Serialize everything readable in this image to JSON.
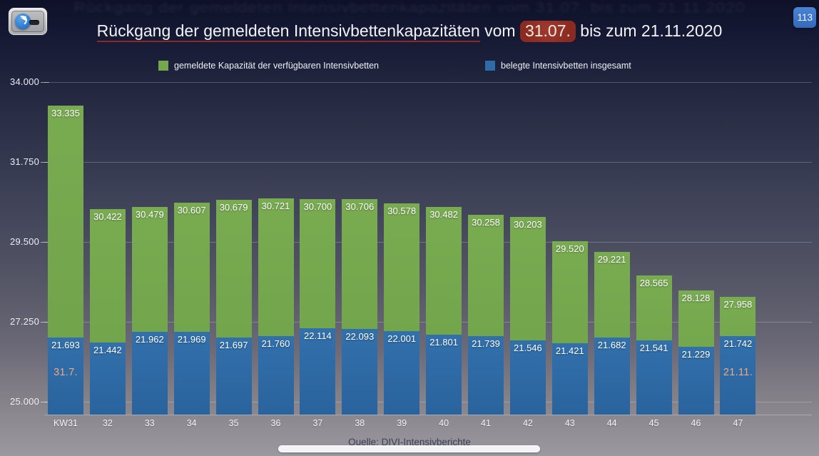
{
  "window": {
    "badge_count": "113",
    "app_icon": "presenter-overlay-icon"
  },
  "title": {
    "underlined_part": "Rückgang der gemeldeten Intensivbettenkapazitäten",
    "middle": " vom ",
    "highlighted_date": "31.07.",
    "suffix": " bis zum 21.11.2020"
  },
  "legend": {
    "items": [
      {
        "label": "gemeldete Kapazität der verfügbaren Intensivbetten",
        "color": "#74a74e"
      },
      {
        "label": "belegte Intensivbetten insgesamt",
        "color": "#2e6ca8"
      }
    ]
  },
  "chart_data": {
    "type": "bar",
    "title": "Rückgang der gemeldeten Intensivbettenkapazitäten vom 31.07. bis zum 21.11.2020",
    "categories": [
      "KW31",
      "32",
      "33",
      "34",
      "35",
      "36",
      "37",
      "38",
      "39",
      "40",
      "41",
      "42",
      "43",
      "44",
      "45",
      "46",
      "47"
    ],
    "series": [
      {
        "name": "gemeldete Kapazität der verfügbaren Intensivbetten",
        "color": "#74a74e",
        "values": [
          33335,
          30422,
          30479,
          30607,
          30679,
          30721,
          30700,
          30706,
          30578,
          30482,
          30258,
          30203,
          29520,
          29221,
          28565,
          28128,
          27958
        ]
      },
      {
        "name": "belegte Intensivbetten insgesamt",
        "color": "#2e6ca8",
        "values": [
          21693,
          21442,
          21962,
          21969,
          21697,
          21760,
          22114,
          22093,
          22001,
          21801,
          21739,
          21546,
          21421,
          21682,
          21541,
          21229,
          21742
        ]
      }
    ],
    "y_axis": {
      "tick_labels": [
        "34.000",
        "31.750",
        "29.500",
        "27.250",
        "25.000"
      ],
      "tick_values": [
        34000,
        31750,
        29500,
        27250,
        25000
      ],
      "min": 25000,
      "max": 34000,
      "grid": true
    },
    "annotations": [
      {
        "bar_index": 0,
        "text": "31.7.",
        "color": "#eda97e"
      },
      {
        "bar_index": 16,
        "text": "21.11.",
        "color": "#eda97e"
      }
    ],
    "legend_position": "top",
    "source": {
      "prefix": "Quelle: ",
      "linked_text": "DIVI-Intensivberichte"
    }
  }
}
